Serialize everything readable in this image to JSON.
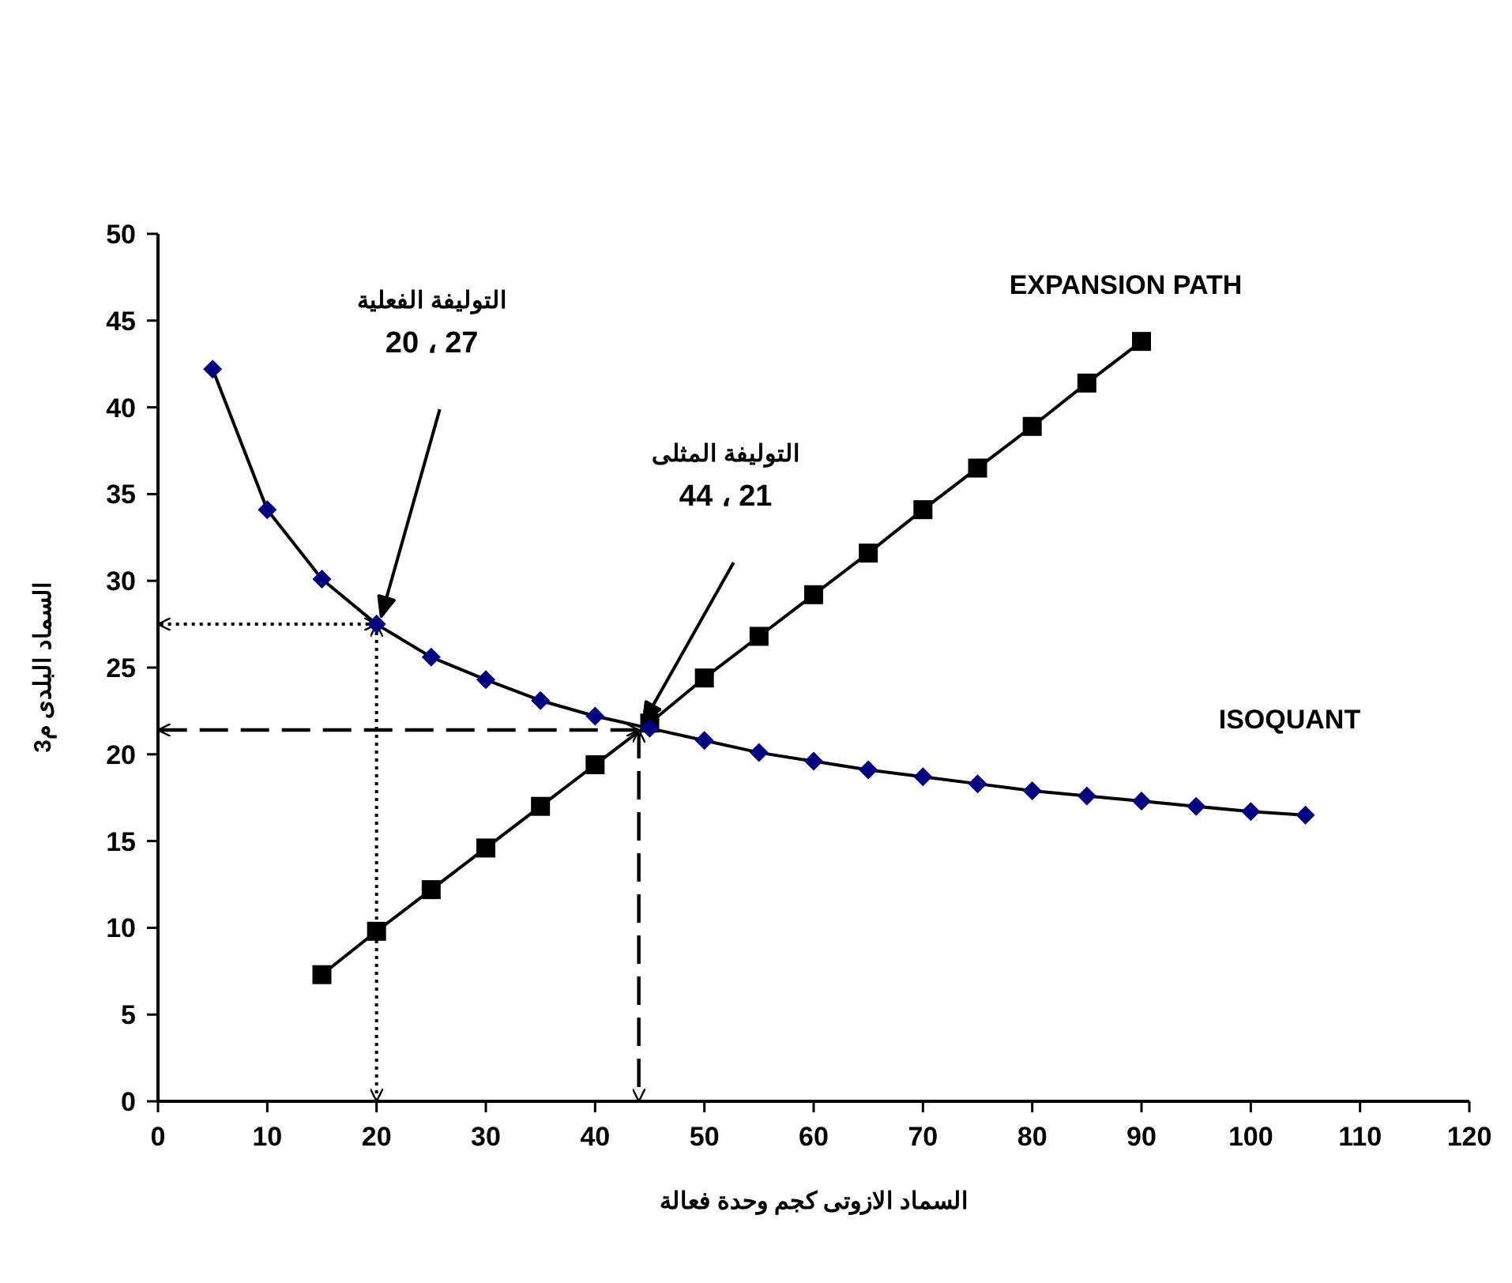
{
  "chart_data": {
    "type": "line",
    "xlabel": "السماد الازوتى كجم وحدة فعالة",
    "ylabel": "السماد البلدى م3",
    "xlim": [
      0,
      120
    ],
    "xticks": [
      0,
      10,
      20,
      30,
      40,
      50,
      60,
      70,
      80,
      90,
      100,
      110,
      120
    ],
    "ylim": [
      0,
      50
    ],
    "yticks": [
      0,
      5,
      10,
      15,
      20,
      25,
      30,
      35,
      40,
      45,
      50
    ],
    "grid": false,
    "line_style": "solid",
    "series": [
      {
        "name": "ISOQUANT",
        "color": "#000080",
        "marker": "diamond",
        "x": [
          5,
          10,
          15,
          20,
          25,
          30,
          35,
          40,
          45,
          50,
          55,
          60,
          65,
          70,
          75,
          80,
          85,
          90,
          95,
          100,
          105
        ],
        "values": [
          42.2,
          34.1,
          30.1,
          27.5,
          25.6,
          24.3,
          23.1,
          22.2,
          21.5,
          20.8,
          20.1,
          19.6,
          19.1,
          18.7,
          18.3,
          17.9,
          17.6,
          17.3,
          17.0,
          16.7,
          16.5
        ]
      },
      {
        "name": "EXPANSION PATH",
        "color": "#000000",
        "marker": "square",
        "x": [
          15,
          20,
          25,
          30,
          35,
          40,
          45,
          50,
          55,
          60,
          65,
          70,
          75,
          80,
          85,
          90
        ],
        "values": [
          7.3,
          9.8,
          12.2,
          14.6,
          17.0,
          19.4,
          21.8,
          24.4,
          26.8,
          29.2,
          31.6,
          34.1,
          36.5,
          38.9,
          41.4,
          43.8
        ]
      }
    ],
    "ref_lines": [
      {
        "axis": "x",
        "value": 20,
        "line_style": "dotted"
      },
      {
        "axis": "y",
        "value": 27.5,
        "line_style": "dotted"
      },
      {
        "axis": "x",
        "value": 44,
        "line_style": "dashed"
      },
      {
        "axis": "y",
        "value": 21.4,
        "line_style": "dashed"
      }
    ],
    "annotations": [
      "التوليفة الفعلية\n20 ، 27",
      "التوليفة المثلى\n44 ، 21"
    ]
  }
}
